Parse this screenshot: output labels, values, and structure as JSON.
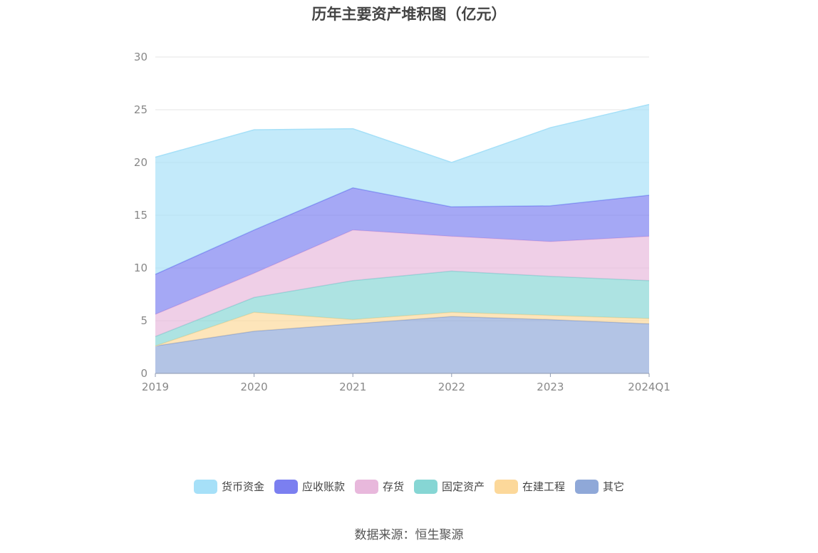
{
  "chart_data": {
    "type": "area",
    "stacked": true,
    "title": "历年主要资产堆积图（亿元）",
    "categories": [
      "2019",
      "2020",
      "2021",
      "2022",
      "2023",
      "2024Q1"
    ],
    "ylim": [
      0,
      30
    ],
    "yticks": [
      0,
      5,
      10,
      15,
      20,
      25,
      30
    ],
    "grid": true,
    "legend_position": "bottom",
    "series": [
      {
        "name": "其它",
        "color": "#8fa8d8",
        "values": [
          2.6,
          4.0,
          4.7,
          5.4,
          5.1,
          4.7
        ]
      },
      {
        "name": "在建工程",
        "color": "#fcd89a",
        "values": [
          0.0,
          1.8,
          0.4,
          0.4,
          0.4,
          0.5
        ]
      },
      {
        "name": "固定资产",
        "color": "#86d6d4",
        "values": [
          0.9,
          1.4,
          3.7,
          3.9,
          3.7,
          3.6
        ]
      },
      {
        "name": "存货",
        "color": "#e8b8dc",
        "values": [
          2.1,
          2.3,
          4.8,
          3.3,
          3.3,
          4.2
        ]
      },
      {
        "name": "应收账款",
        "color": "#7b7ff0",
        "values": [
          3.8,
          4.1,
          4.0,
          2.8,
          3.4,
          3.9
        ]
      },
      {
        "name": "货币资金",
        "color": "#a6e0f8",
        "values": [
          11.1,
          9.5,
          5.6,
          4.2,
          7.4,
          8.6
        ]
      }
    ],
    "legend_order": [
      "货币资金",
      "应收账款",
      "存货",
      "固定资产",
      "在建工程",
      "其它"
    ]
  },
  "source_text": "数据来源：恒生聚源"
}
